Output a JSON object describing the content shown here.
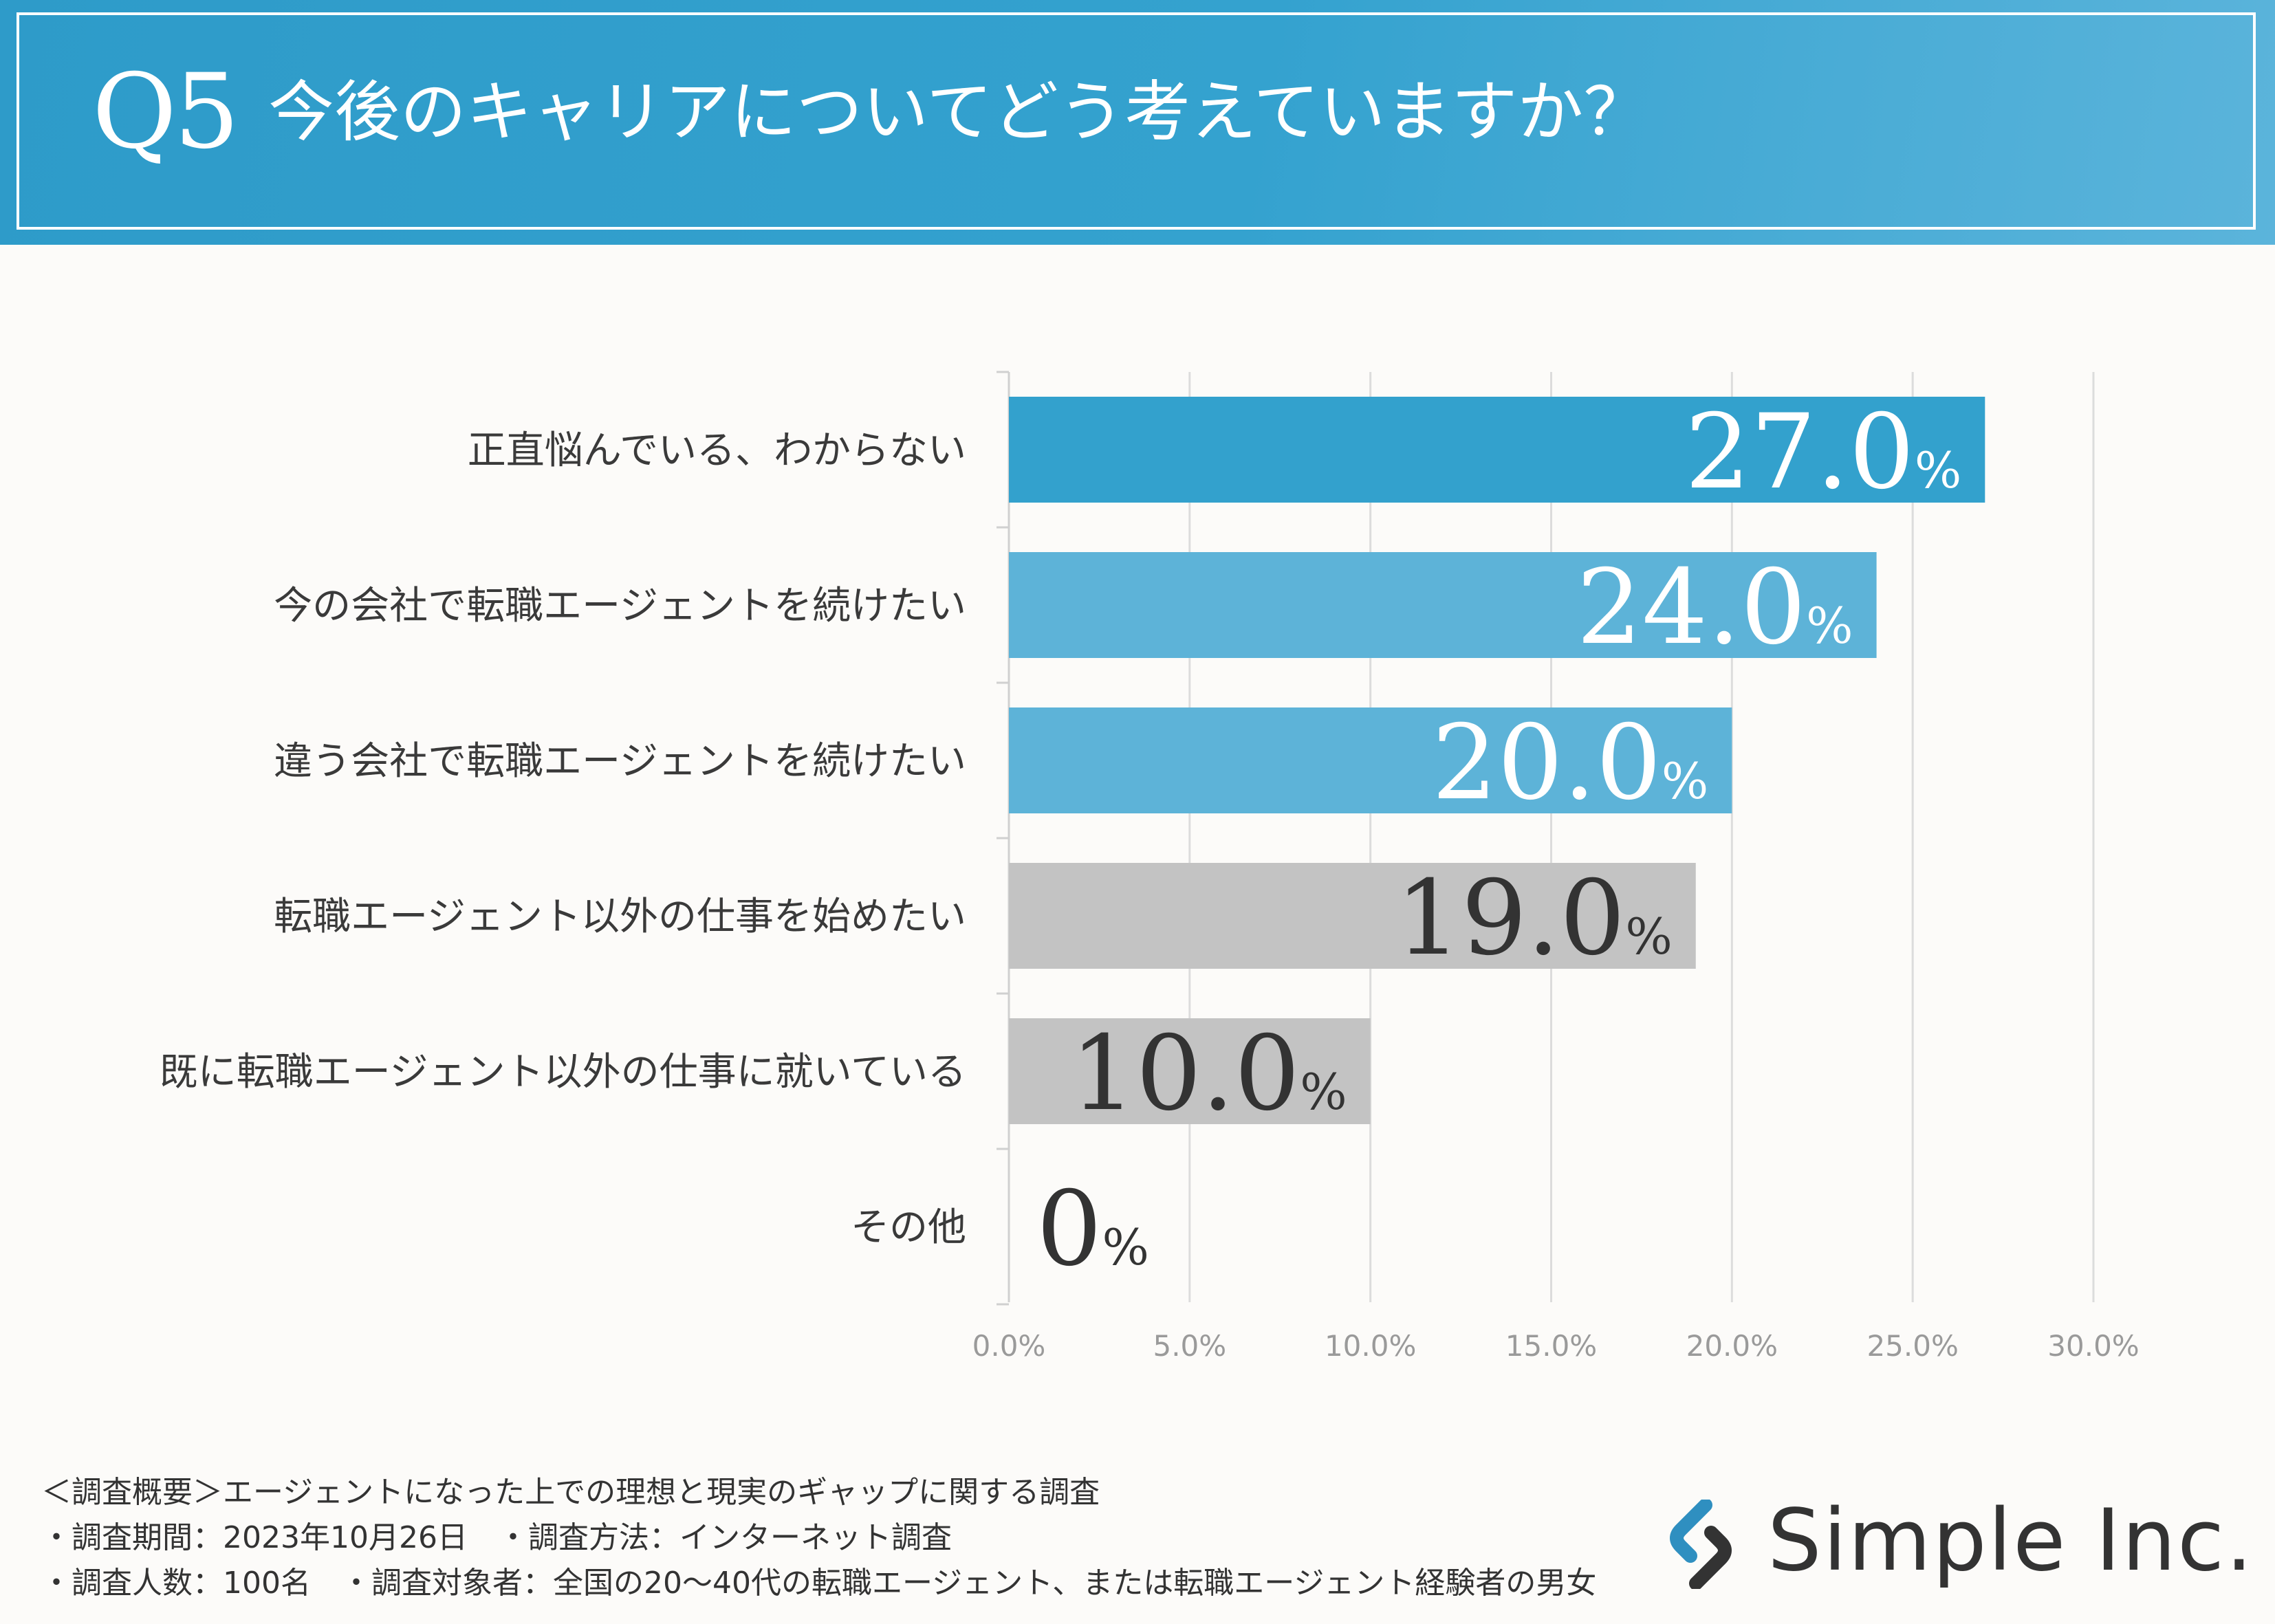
{
  "header": {
    "q_number": "Q5",
    "title": "今後のキャリアについてどう考えていますか？"
  },
  "chart_data": {
    "type": "bar",
    "orientation": "horizontal",
    "categories": [
      "正直悩んでいる、わからない",
      "今の会社で転職エージェントを続けたい",
      "違う会社で転職エージェントを続けたい",
      "転職エージェント以外の仕事を始めたい",
      "既に転職エージェント以外の仕事に就いている",
      "その他"
    ],
    "values": [
      27.0,
      24.0,
      20.0,
      19.0,
      10.0,
      0
    ],
    "value_labels": [
      "27.0",
      "24.0",
      "20.0",
      "19.0",
      "10.0",
      "0"
    ],
    "value_suffix": "%",
    "bar_colors": [
      "#33a1cd",
      "#5db3d8",
      "#5db3d8",
      "#c3c3c3",
      "#c3c3c3",
      "#c3c3c3"
    ],
    "label_colors": [
      "#ffffff",
      "#ffffff",
      "#ffffff",
      "#333333",
      "#333333",
      "#333333"
    ],
    "xlim": [
      0,
      30
    ],
    "xticks": [
      0,
      5,
      10,
      15,
      20,
      25,
      30
    ],
    "xtick_labels": [
      "0.0%",
      "5.0%",
      "10.0%",
      "15.0%",
      "20.0%",
      "25.0%",
      "30.0%"
    ],
    "grid": true,
    "title": "今後のキャリアについてどう考えていますか？",
    "xlabel": "",
    "ylabel": ""
  },
  "footer": {
    "lines": [
      "＜調査概要＞エージェントになった上での理想と現実のギャップに関する調査",
      "・調査期間：2023年10月26日　・調査方法：インターネット調査",
      "・調査人数：100名　・調査対象者：全国の20〜40代の転職エージェント、または転職エージェント経験者の男女"
    ]
  },
  "logo": {
    "text": "Simple Inc."
  },
  "colors": {
    "header_blue": "#33a1cd",
    "accent_dark": "#333333"
  }
}
